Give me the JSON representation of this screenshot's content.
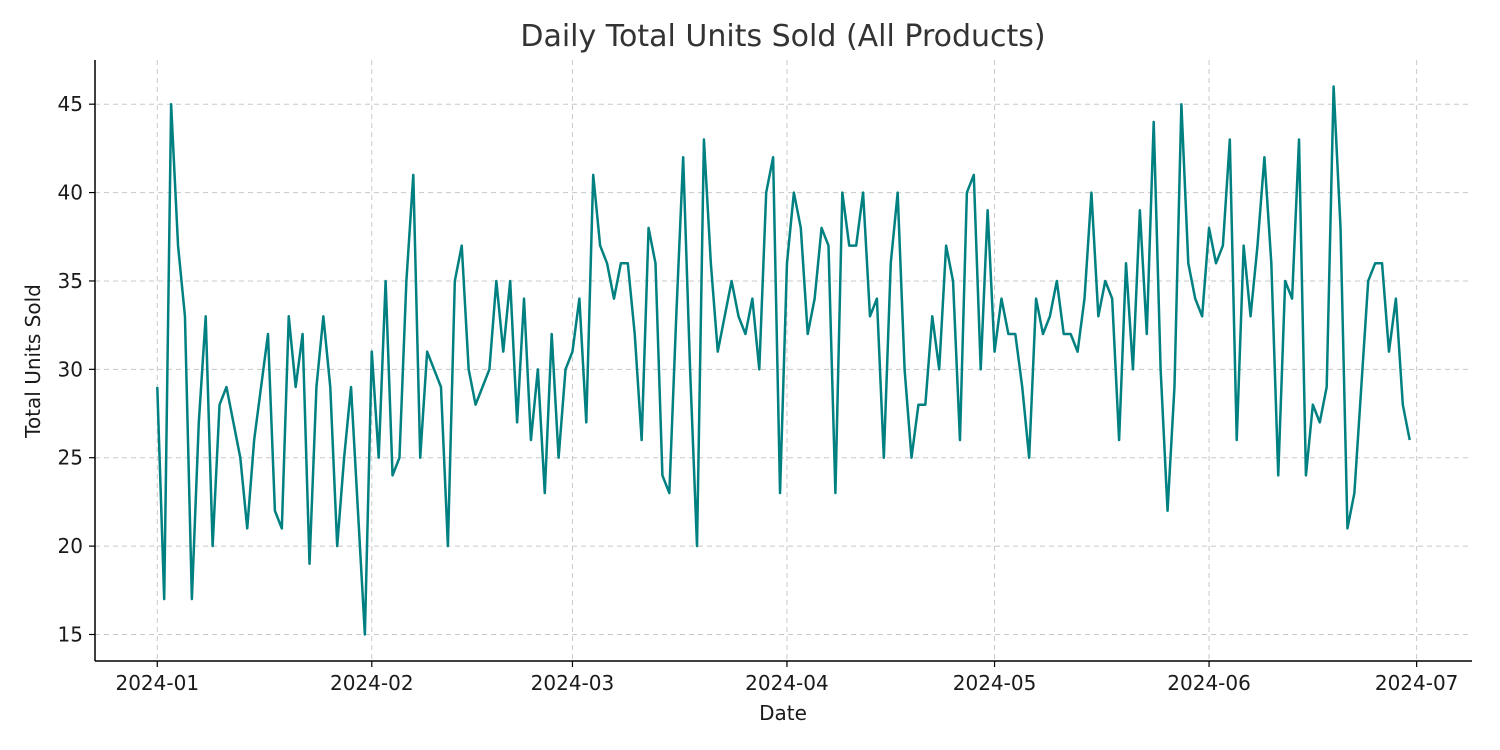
{
  "chart_data": {
    "type": "line",
    "title": "Daily Total Units Sold (All Products)",
    "xlabel": "Date",
    "ylabel": "Total Units Sold",
    "x_start": "2024-01-01",
    "x_end": "2024-06-30",
    "xlim": [
      "2023-12-23",
      "2024-07-09"
    ],
    "ylim": [
      13.5,
      47.5
    ],
    "x_ticks": [
      "2024-01-01",
      "2024-02-01",
      "2024-03-01",
      "2024-04-01",
      "2024-05-01",
      "2024-06-01",
      "2024-07-01"
    ],
    "x_tick_labels": [
      "2024-01",
      "2024-02",
      "2024-03",
      "2024-04",
      "2024-05",
      "2024-06",
      "2024-07"
    ],
    "y_ticks": [
      15,
      20,
      25,
      30,
      35,
      40,
      45
    ],
    "grid": true,
    "colors": {
      "line": "#008080",
      "grid": "#c8c8c8",
      "axis": "#000000"
    },
    "series": [
      {
        "values": [
          29,
          17,
          45,
          37,
          33,
          17,
          27,
          33,
          20,
          28,
          29,
          27,
          25,
          21,
          26,
          29,
          32,
          22,
          21,
          33,
          29,
          32,
          19,
          29,
          33,
          29,
          20,
          25,
          29,
          22,
          15,
          31,
          25,
          35,
          24,
          25,
          35,
          41,
          25,
          31,
          30,
          29,
          20,
          35,
          37,
          30,
          28,
          29,
          30,
          35,
          31,
          35,
          27,
          34,
          26,
          30,
          23,
          32,
          25,
          30,
          31,
          34,
          27,
          41,
          37,
          36,
          34,
          36,
          36,
          32,
          26,
          38,
          36,
          24,
          23,
          33,
          42,
          30,
          20,
          43,
          36,
          31,
          33,
          35,
          33,
          32,
          34,
          30,
          40,
          42,
          23,
          36,
          40,
          38,
          32,
          34,
          38,
          37,
          23,
          40,
          37,
          37,
          40,
          33,
          34,
          25,
          36,
          40,
          30,
          25,
          28,
          28,
          33,
          30,
          37,
          35,
          26,
          40,
          41,
          30,
          39,
          31,
          34,
          32,
          32,
          29,
          25,
          34,
          32,
          33,
          35,
          32,
          32,
          31,
          34,
          40,
          33,
          35,
          34,
          26,
          36,
          30,
          39,
          32,
          44,
          30,
          22,
          29,
          45,
          36,
          34,
          33,
          38,
          36,
          37,
          43,
          26,
          37,
          33,
          37,
          42,
          36,
          24,
          35,
          34,
          43,
          24,
          28,
          27,
          29,
          46,
          38,
          21,
          23,
          29,
          35,
          36,
          36,
          31,
          34,
          28,
          26
        ]
      }
    ]
  }
}
